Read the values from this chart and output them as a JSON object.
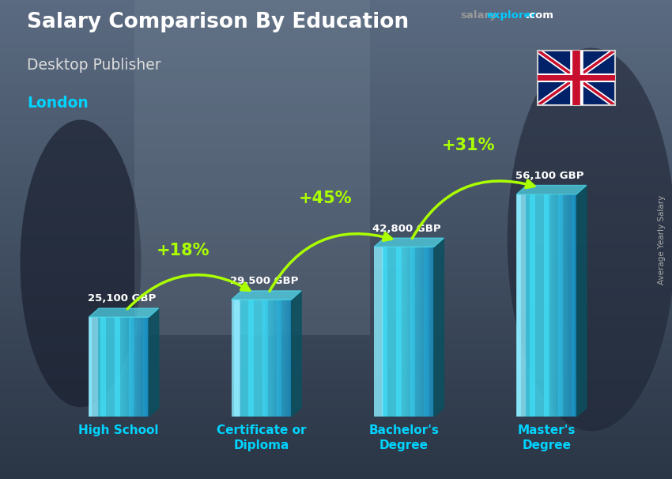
{
  "title": "Salary Comparison By Education",
  "subtitle": "Desktop Publisher",
  "location": "London",
  "ylabel": "Average Yearly Salary",
  "categories": [
    "High School",
    "Certificate or\nDiploma",
    "Bachelor's\nDegree",
    "Master's\nDegree"
  ],
  "values": [
    25100,
    29500,
    42800,
    56100
  ],
  "labels": [
    "25,100 GBP",
    "29,500 GBP",
    "42,800 GBP",
    "56,100 GBP"
  ],
  "pct_labels": [
    "+18%",
    "+45%",
    "+31%"
  ],
  "bar_face_color": "#40d8f0",
  "bar_left_highlight": "#80eeff",
  "bar_right_shadow": "#1090b0",
  "bar_alpha": 0.82,
  "bg_color": "#4a5568",
  "title_color": "#ffffff",
  "subtitle_color": "#dddddd",
  "location_color": "#00d4ff",
  "label_color": "#ffffff",
  "pct_color": "#aaff00",
  "arrow_color": "#aaff00",
  "xtick_color": "#00d4ff",
  "salary_color": "#aaaaaa",
  "explorer_color": "#00ccff",
  "com_color": "#ffffff"
}
